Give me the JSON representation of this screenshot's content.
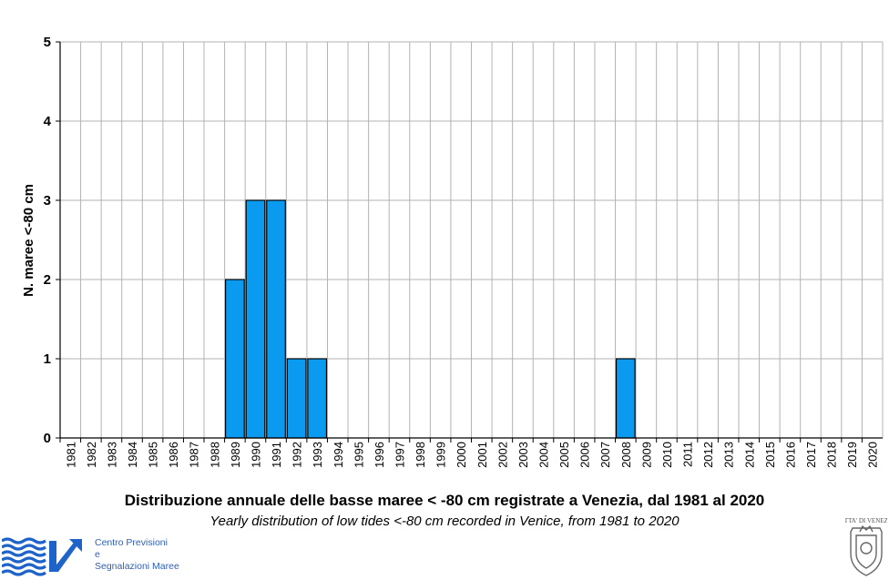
{
  "chart_data": {
    "type": "bar",
    "title": "Distribuzione annuale delle basse maree < -80 cm registrate a Venezia, dal 1981 al 2020",
    "subtitle": "Yearly distribution of low tides <-80 cm recorded in Venice, from 1981 to 2020",
    "xlabel": "",
    "ylabel": "N. maree  <-80 cm",
    "ylim": [
      0,
      5
    ],
    "yticks": [
      "0",
      "1",
      "2",
      "3",
      "4",
      "5"
    ],
    "grid": true,
    "categories": [
      "1981",
      "1982",
      "1983",
      "1984",
      "1985",
      "1986",
      "1987",
      "1988",
      "1989",
      "1990",
      "1991",
      "1992",
      "1993",
      "1994",
      "1995",
      "1996",
      "1997",
      "1998",
      "1999",
      "2000",
      "2001",
      "2002",
      "2003",
      "2004",
      "2005",
      "2006",
      "2007",
      "2008",
      "2009",
      "2010",
      "2011",
      "2012",
      "2013",
      "2014",
      "2015",
      "2016",
      "2017",
      "2018",
      "2019",
      "2020"
    ],
    "values": [
      0,
      0,
      0,
      0,
      0,
      0,
      0,
      0,
      2,
      3,
      3,
      1,
      1,
      0,
      0,
      0,
      0,
      0,
      0,
      0,
      0,
      0,
      0,
      0,
      0,
      0,
      0,
      1,
      0,
      0,
      0,
      0,
      0,
      0,
      0,
      0,
      0,
      0,
      0,
      0
    ],
    "bar_color": "#0a9bf0"
  },
  "logos": {
    "cpsm_lines": [
      "Centro Previsioni",
      "e",
      "Segnalazioni Maree"
    ],
    "comune_text": "CITTA' DI VENEZIA"
  }
}
